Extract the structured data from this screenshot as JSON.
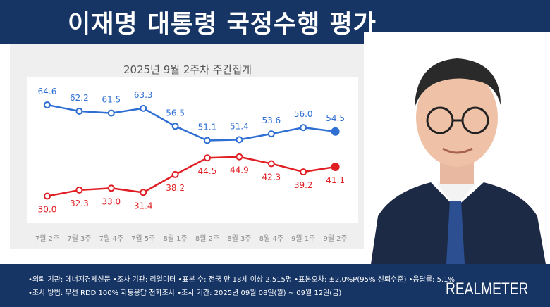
{
  "header": {
    "title": "이재명 대통령 국정수행 평가"
  },
  "chart_data": {
    "type": "line",
    "title": "2025년 9월 2주차 주간집계",
    "categories": [
      "7월 2주",
      "7월 3주",
      "7월 4주",
      "7월 5주",
      "8월 1주",
      "8월 2주",
      "8월 3주",
      "8월 4주",
      "9월 1주",
      "9월 2주"
    ],
    "series": [
      {
        "color": "#2f6fd3",
        "values": [
          64.6,
          62.2,
          61.5,
          63.3,
          56.5,
          51.1,
          51.4,
          53.6,
          56.0,
          54.5
        ]
      },
      {
        "color": "#e01f24",
        "values": [
          30.0,
          32.3,
          33.0,
          31.4,
          38.2,
          44.5,
          44.9,
          42.3,
          39.2,
          41.1
        ]
      }
    ],
    "ylim": [
      20,
      75
    ],
    "grid": false
  },
  "footer": {
    "notes": [
      "•의뢰 기관: 에너지경제신문 •조사 기관: 리얼미터 •표본 수: 전국 만 18세 이상 2,515명 •표본오차: ±2.0%P(95% 신뢰수준) •응답률: 5.1%",
      "•조사 방법: 무선 RDD 100% 자동응답 전화조사 •조사 기간: 2025년 09월 08일(월) ~ 09월 12일(금)"
    ],
    "brand": "REALMETER"
  },
  "portrait": {
    "icon": "person-portrait"
  }
}
